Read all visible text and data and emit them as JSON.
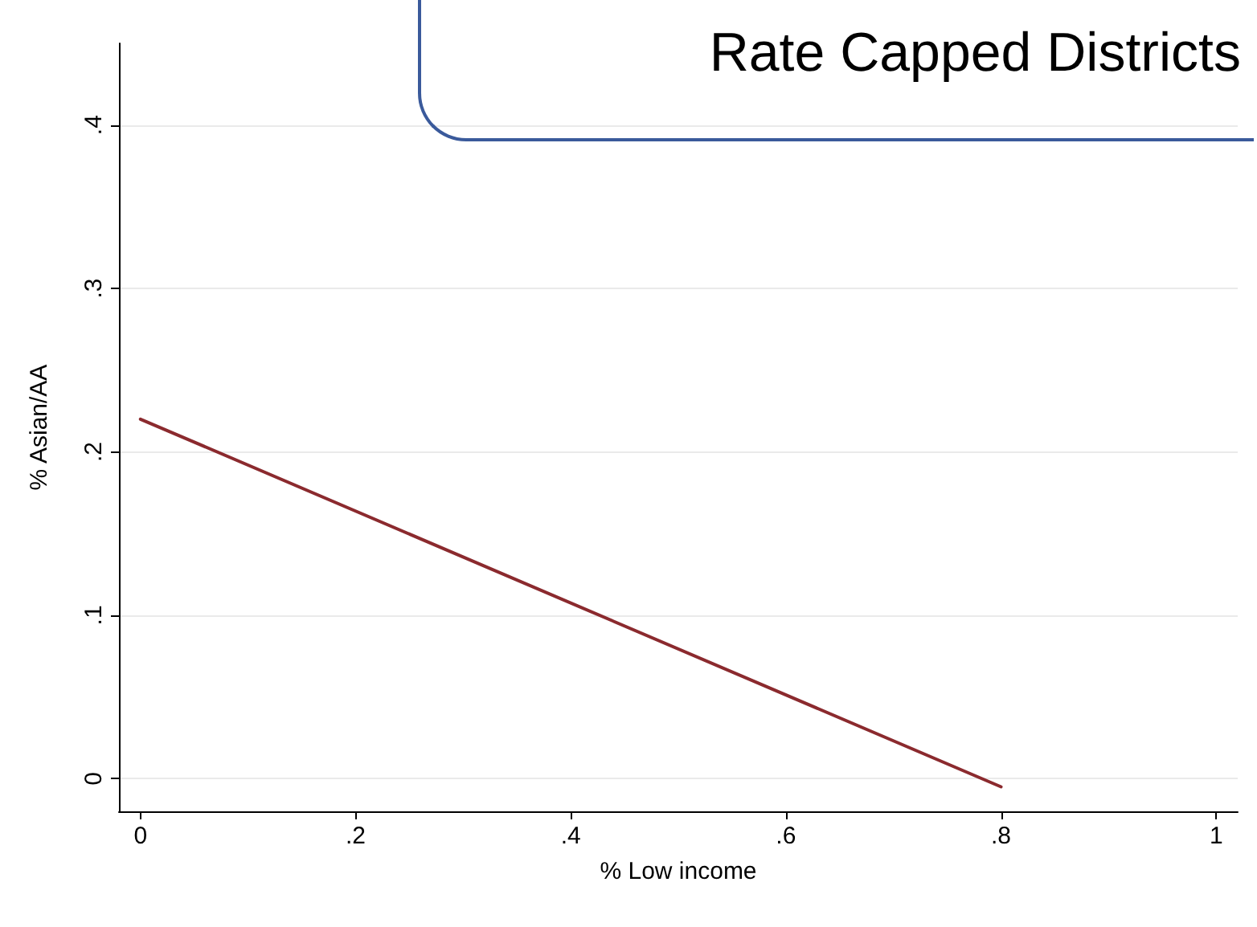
{
  "chart_data": {
    "type": "line",
    "title": "Rate Capped Districts",
    "xlabel": "% Low income",
    "ylabel": "% Asian/AA",
    "x": [
      0,
      0.8
    ],
    "series": [
      {
        "color": "#8b2a2e",
        "values": [
          0.22,
          -0.005
        ]
      }
    ],
    "xlim": [
      -0.02,
      1.02
    ],
    "ylim": [
      -0.02,
      0.45
    ],
    "xticks": [
      0,
      {
        "value": 0.2,
        "label": ".2"
      },
      {
        "value": 0.4,
        "label": ".4"
      },
      {
        "value": 0.6,
        "label": ".6"
      },
      {
        "value": 0.8,
        "label": ".8"
      },
      1
    ],
    "yticks": [
      0,
      {
        "value": 0.1,
        "label": ".1"
      },
      {
        "value": 0.2,
        "label": ".2"
      },
      {
        "value": 0.3,
        "label": ".3"
      },
      {
        "value": 0.4,
        "label": ".4"
      }
    ],
    "grid": "y",
    "marker": "none",
    "line_style": "solid"
  }
}
